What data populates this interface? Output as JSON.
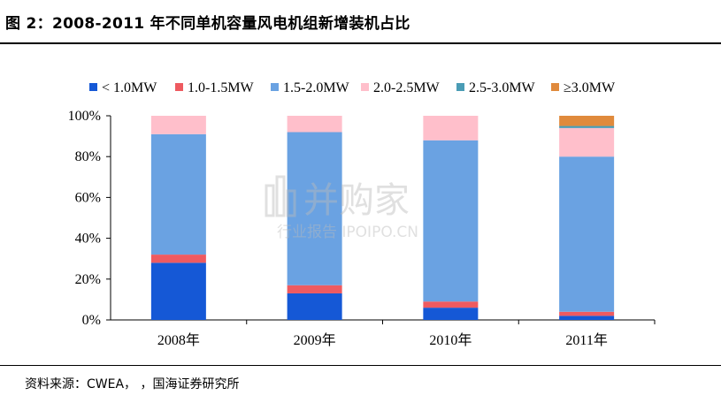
{
  "title": "图 2：2008-2011 年不同单机容量风电机组新增装机占比",
  "source": "资料来源：CWEA，        ，国海证券研究所",
  "watermark": {
    "brand": "并购家",
    "sub": "行业报告 IPOIPO.CN"
  },
  "chart_data": {
    "type": "bar",
    "stacked": true,
    "percent": true,
    "categories": [
      "2008年",
      "2009年",
      "2010年",
      "2011年"
    ],
    "ylim": [
      0,
      100
    ],
    "yticks": [
      "0%",
      "20%",
      "40%",
      "60%",
      "80%",
      "100%"
    ],
    "legend_position": "top",
    "series": [
      {
        "name": "< 1.0MW",
        "color": "#1558D6",
        "values": [
          28,
          13,
          6,
          2
        ]
      },
      {
        "name": "1.0-1.5MW",
        "color": "#EE5A60",
        "values": [
          4,
          4,
          3,
          2
        ]
      },
      {
        "name": "1.5-2.0MW",
        "color": "#6AA2E2",
        "values": [
          59,
          75,
          79,
          76
        ]
      },
      {
        "name": "2.0-2.5MW",
        "color": "#FFBFCB",
        "values": [
          9,
          8,
          12,
          14
        ]
      },
      {
        "name": "2.5-3.0MW",
        "color": "#4A9CB5",
        "values": [
          0,
          0,
          0,
          1
        ]
      },
      {
        "name": "≥3.0MW",
        "color": "#E08A3C",
        "values": [
          0,
          0,
          0,
          5
        ]
      }
    ]
  }
}
